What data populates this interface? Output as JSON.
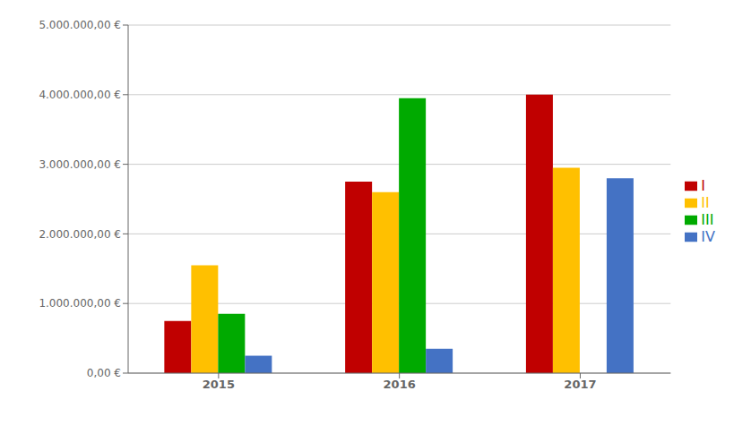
{
  "chart_data": {
    "type": "bar",
    "categories": [
      "2015",
      "2016",
      "2017"
    ],
    "series": [
      {
        "name": "I",
        "color": "#C00000",
        "values": [
          750000,
          2750000,
          4000000
        ]
      },
      {
        "name": "II",
        "color": "#FFC000",
        "values": [
          1550000,
          2600000,
          2950000
        ]
      },
      {
        "name": "III",
        "color": "#00AA00",
        "values": [
          850000,
          3950000,
          0
        ]
      },
      {
        "name": "IV",
        "color": "#4472C4",
        "values": [
          250000,
          350000,
          2800000
        ]
      }
    ],
    "ylim": [
      0,
      5000000
    ],
    "yticks": [
      {
        "value": 0,
        "label": "0,00 €"
      },
      {
        "value": 1000000,
        "label": "1.000.000,00 €"
      },
      {
        "value": 2000000,
        "label": "2.000.000,00 €"
      },
      {
        "value": 3000000,
        "label": "3.000.000,00 €"
      },
      {
        "value": 4000000,
        "label": "4.000.000,00 €"
      },
      {
        "value": 5000000,
        "label": "5.000.000,00 €"
      }
    ],
    "grid": true,
    "legend": "right"
  }
}
